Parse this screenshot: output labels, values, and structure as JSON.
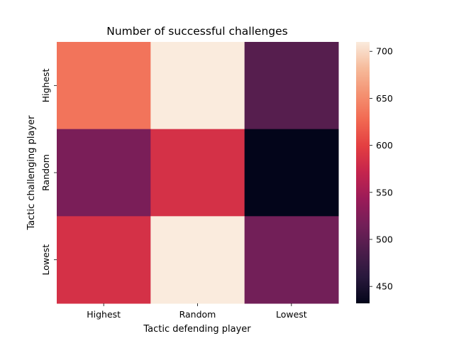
{
  "chart_data": {
    "type": "heatmap",
    "title": "Number of successful challenges",
    "xlabel": "Tactic defending player",
    "ylabel": "Tactic challenging player",
    "x_categories": [
      "Highest",
      "Random",
      "Lowest"
    ],
    "y_categories": [
      "Highest",
      "Random",
      "Lowest"
    ],
    "values": [
      [
        635,
        710,
        495
      ],
      [
        520,
        585,
        432
      ],
      [
        585,
        710,
        515
      ]
    ],
    "colorbar": {
      "min": 432,
      "max": 710,
      "ticks": [
        450,
        500,
        550,
        600,
        650,
        700
      ],
      "colormap": "rocket",
      "position": "right"
    },
    "grid": false
  }
}
